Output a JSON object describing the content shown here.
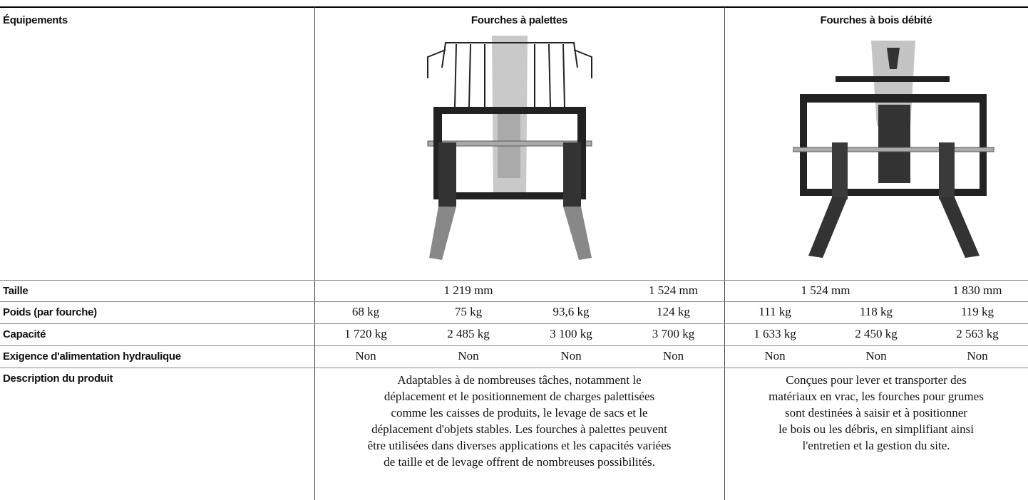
{
  "table": {
    "columns": [
      "Équipements",
      "Fourches à palettes",
      "Fourches à bois débité"
    ],
    "rows": [
      {
        "label": "Taille",
        "cells": [
          "1 219 mm",
          "1 524 mm",
          "1 524 mm",
          "1 830 mm"
        ]
      },
      {
        "label": "Poids (par fourche)",
        "cells": [
          "68 kg",
          "75 kg",
          "93,6 kg",
          "124 kg",
          "111 kg",
          "118 kg",
          "119 kg"
        ]
      },
      {
        "label": "Capacité",
        "cells": [
          "1 720 kg",
          "2 485 kg",
          "3 100 kg",
          "3 700 kg",
          "1 633 kg",
          "2 450 kg",
          "2 563 kg"
        ]
      },
      {
        "label": "Exigence d'alimentation hydraulique",
        "cells": [
          "Non",
          "Non",
          "Non",
          "Non",
          "Non",
          "Non",
          "Non"
        ]
      },
      {
        "label": "Description du produit",
        "cells": [
          [
            "Adaptables à de nombreuses tâches, notamment le",
            "déplacement et le positionnement de charges palettisées",
            "comme les caisses de produits, le levage de sacs et le",
            "déplacement d'objets stables. Les fourches à palettes peuvent",
            "être utilisées dans diverses applications et les capacités variées",
            "de taille et de levage offrent de nombreuses possibilités."
          ],
          [
            "Conçues pour lever et transporter des",
            "matériaux en vrac, les fourches pour grumes",
            "sont destinées à saisir et à positionner",
            "le bois ou les débris, en simplifiant ainsi",
            "l'entretien et la gestion du site."
          ]
        ]
      }
    ]
  }
}
